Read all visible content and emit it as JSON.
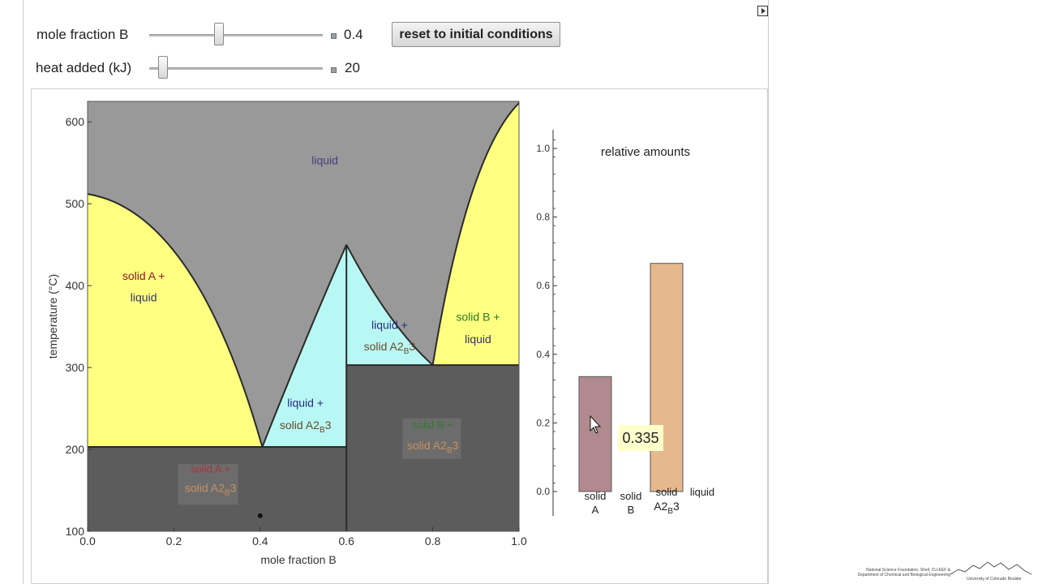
{
  "controls": {
    "slider1": {
      "label": "mole fraction B",
      "value": "0.4",
      "fraction": 0.4
    },
    "slider2": {
      "label": "heat added (kJ)",
      "value": "20",
      "fraction": 0.08
    },
    "reset_label": "reset to initial conditions"
  },
  "chart_data": [
    {
      "type": "phase-diagram",
      "xlabel": "mole fraction B",
      "ylabel": "temperature (°C)",
      "xlim": [
        0.0,
        1.0
      ],
      "ylim": [
        100,
        625
      ],
      "xticks": [
        "0.0",
        "0.2",
        "0.4",
        "0.6",
        "0.8",
        "1.0"
      ],
      "yticks": [
        "100",
        "200",
        "300",
        "400",
        "500",
        "600"
      ],
      "points": {
        "melt_A": [
          0.0,
          512
        ],
        "eutectic_1": [
          0.405,
          203
        ],
        "compound_melt": [
          0.6,
          450
        ],
        "eutectic_2": [
          0.8,
          303
        ],
        "melt_B": [
          1.0,
          623
        ]
      },
      "regions": {
        "liquid": "liquid",
        "solidA_liquid": [
          "solid A +",
          "liquid"
        ],
        "liquid_solidA2B3_left": [
          "liquid +",
          "solid A",
          "2",
          "B",
          "3"
        ],
        "liquid_solidA2B3_right": [
          "liquid +",
          "solid A",
          "2",
          "B",
          "3"
        ],
        "solidB_liquid": [
          "solid B +",
          "liquid"
        ],
        "solidA_solidA2B3": [
          "solid A +",
          "solid A",
          "2",
          "B",
          "3"
        ],
        "solidB_solidA2B3": [
          "solid B +",
          "solid A",
          "2",
          "B",
          "3"
        ]
      },
      "state_point": {
        "x": 0.4,
        "y": 119
      },
      "colors": {
        "liquid": "#999999",
        "two_phase_yellow": "#ffff80",
        "two_phase_cyan": "#b8f8f4",
        "solid": "#5c5c5c",
        "boundary": "#2a2a2a"
      }
    },
    {
      "type": "bar",
      "title": "relative amounts",
      "ylim": [
        0,
        1.0
      ],
      "yticks": [
        "0.0",
        "0.2",
        "0.4",
        "0.6",
        "0.8",
        "1.0"
      ],
      "categories": [
        {
          "lines": [
            "solid",
            "A"
          ],
          "value": 0.335,
          "color": "#b08a8f"
        },
        {
          "lines": [
            "solid",
            "B"
          ],
          "value": 0.0,
          "color": "#c0e0c0"
        },
        {
          "lines": [
            "solid",
            "A",
            "2",
            "B",
            "3"
          ],
          "value": 0.665,
          "color": "#e6b88e"
        },
        {
          "lines": [
            "liquid"
          ],
          "value": 0.0,
          "color": "#8888cc"
        }
      ],
      "callout": "0.335"
    }
  ],
  "credits": {
    "line1": "National Science Foundation, Shell, CU-EEF &",
    "line2": "Department of Chemical and Biological Engineering",
    "university": "University of Colorado Boulder"
  }
}
